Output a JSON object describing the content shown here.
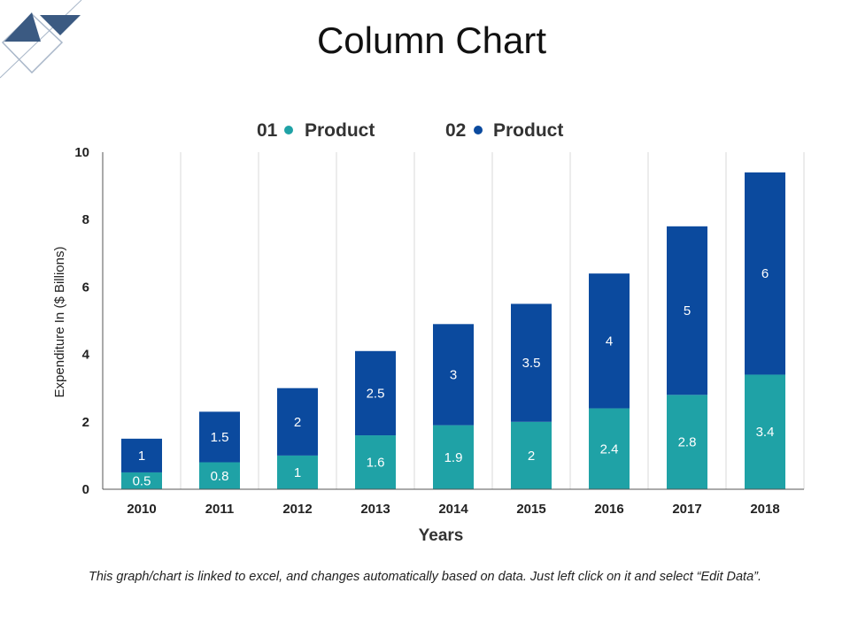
{
  "page": {
    "title": "Column Chart"
  },
  "colors": {
    "series1": "#1fa2a6",
    "series2": "#0b4a9e",
    "deco_dark": "#3b5a82",
    "deco_light": "#a9b7c9",
    "grid": "#d9d9d9"
  },
  "legend": {
    "items": [
      {
        "number": "01",
        "label": "Product"
      },
      {
        "number": "02",
        "label": "Product"
      }
    ]
  },
  "chart_data": {
    "type": "bar",
    "stacked": true,
    "title": "",
    "xlabel": "Years",
    "ylabel": "Expenditure In ($ Billions)",
    "categories": [
      "2010",
      "2011",
      "2012",
      "2013",
      "2014",
      "2015",
      "2016",
      "2017",
      "2018"
    ],
    "series": [
      {
        "name": "Product",
        "values": [
          0.5,
          0.8,
          1,
          1.6,
          1.9,
          2,
          2.4,
          2.8,
          3.4
        ]
      },
      {
        "name": "Product",
        "values": [
          1,
          1.5,
          2,
          2.5,
          3,
          3.5,
          4,
          5,
          6
        ]
      }
    ],
    "ylim": [
      0,
      10
    ],
    "yticks": [
      0,
      2,
      4,
      6,
      8,
      10
    ],
    "grid": "vertical",
    "legend_position": "top"
  },
  "footnote": "This graph/chart is linked to excel, and changes automatically based on data. Just left click on it and select “Edit Data”."
}
